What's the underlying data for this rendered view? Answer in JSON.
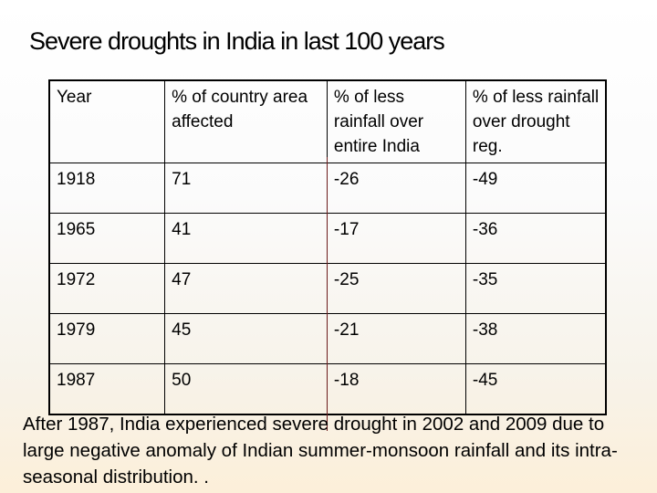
{
  "slide": {
    "title": "Severe droughts in India in last 100 years",
    "table": {
      "headers": [
        "Year",
        "% of country area affected",
        "% of less rainfall over entire India",
        "% of less rainfall over drought reg."
      ],
      "rows": [
        [
          "1918",
          "71",
          "-26",
          "-49"
        ],
        [
          "1965",
          "41",
          "-17",
          "-36"
        ],
        [
          "1972",
          "47",
          "-25",
          "-35"
        ],
        [
          "1979",
          "45",
          "-21",
          "-38"
        ],
        [
          "1987",
          "50",
          "-18",
          "-45"
        ]
      ]
    },
    "footer_text": "After 1987, India experienced severe drought in 2002 and 2009 due to large negative anomaly of Indian summer-monsoon rainfall and its intra-seasonal distribution. ."
  }
}
